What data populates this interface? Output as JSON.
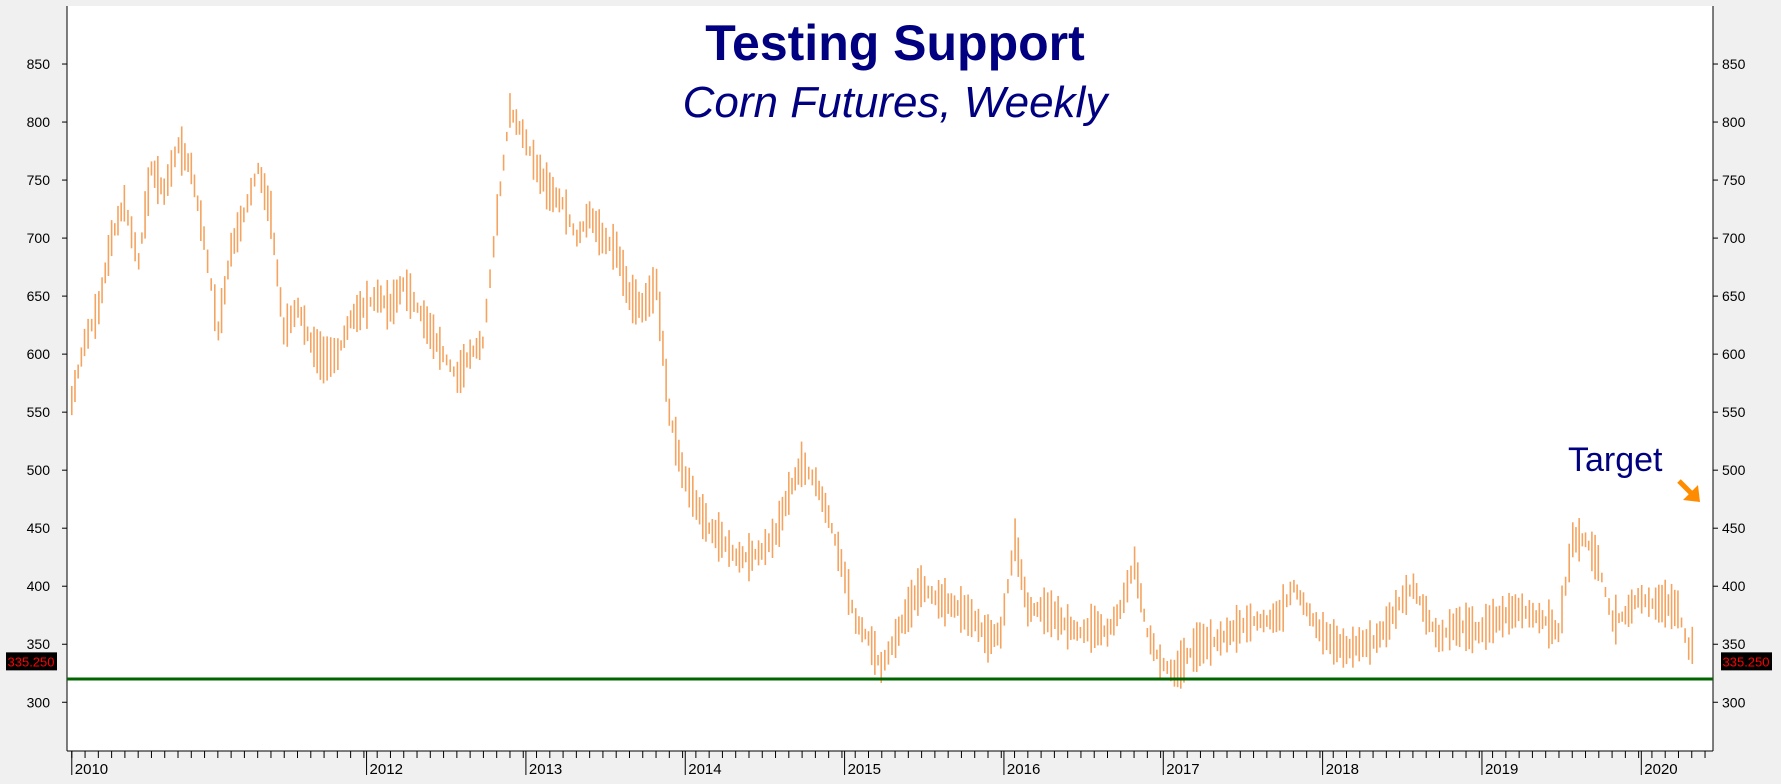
{
  "chart_data": {
    "type": "bar",
    "subtype": "ohlc-weekly-price-bars",
    "title": "Testing Support",
    "subtitle": "Corn Futures, Weekly",
    "annotation": "Target",
    "last_price_label": "335.250",
    "last_price": 335.25,
    "support_level": 320,
    "ylim": [
      258,
      900
    ],
    "y_ticks": [
      300,
      350,
      400,
      450,
      500,
      550,
      600,
      650,
      700,
      750,
      800,
      850
    ],
    "x_ticks": [
      "2010",
      "2012",
      "2013",
      "2014",
      "2015",
      "2016",
      "2017",
      "2018",
      "2019",
      "2020"
    ],
    "grid": false,
    "series": [
      {
        "values": [
          [
            2010.0,
            560
          ],
          [
            2010.08,
            610
          ],
          [
            2010.17,
            640
          ],
          [
            2010.25,
            700
          ],
          [
            2010.33,
            730
          ],
          [
            2010.42,
            680
          ],
          [
            2010.5,
            760
          ],
          [
            2010.58,
            740
          ],
          [
            2010.67,
            780
          ],
          [
            2010.75,
            760
          ],
          [
            2010.83,
            700
          ],
          [
            2010.92,
            620
          ],
          [
            2011.0,
            690
          ],
          [
            2011.08,
            720
          ],
          [
            2011.17,
            760
          ],
          [
            2011.25,
            720
          ],
          [
            2011.33,
            620
          ],
          [
            2011.42,
            640
          ],
          [
            2011.5,
            610
          ],
          [
            2011.58,
            595
          ],
          [
            2011.67,
            600
          ],
          [
            2011.75,
            630
          ],
          [
            2011.83,
            640
          ],
          [
            2011.92,
            650
          ],
          [
            2012.0,
            640
          ],
          [
            2012.08,
            660
          ],
          [
            2012.17,
            640
          ],
          [
            2012.25,
            620
          ],
          [
            2012.33,
            600
          ],
          [
            2012.42,
            580
          ],
          [
            2012.5,
            600
          ],
          [
            2012.58,
            610
          ],
          [
            2012.67,
            720
          ],
          [
            2012.75,
            810
          ],
          [
            2012.83,
            790
          ],
          [
            2012.92,
            760
          ],
          [
            2013.0,
            740
          ],
          [
            2013.08,
            730
          ],
          [
            2013.17,
            700
          ],
          [
            2013.25,
            720
          ],
          [
            2013.33,
            700
          ],
          [
            2013.42,
            690
          ],
          [
            2013.5,
            650
          ],
          [
            2013.58,
            640
          ],
          [
            2013.67,
            660
          ],
          [
            2013.75,
            550
          ],
          [
            2013.83,
            500
          ],
          [
            2013.92,
            470
          ],
          [
            2014.0,
            450
          ],
          [
            2014.08,
            440
          ],
          [
            2014.17,
            425
          ],
          [
            2014.25,
            425
          ],
          [
            2014.33,
            430
          ],
          [
            2014.42,
            445
          ],
          [
            2014.5,
            480
          ],
          [
            2014.58,
            505
          ],
          [
            2014.67,
            490
          ],
          [
            2014.75,
            460
          ],
          [
            2014.83,
            420
          ],
          [
            2014.92,
            370
          ],
          [
            2015.0,
            355
          ],
          [
            2015.08,
            330
          ],
          [
            2015.17,
            355
          ],
          [
            2015.25,
            380
          ],
          [
            2015.33,
            400
          ],
          [
            2015.42,
            390
          ],
          [
            2015.5,
            385
          ],
          [
            2015.58,
            380
          ],
          [
            2015.67,
            370
          ],
          [
            2015.75,
            355
          ],
          [
            2015.83,
            360
          ],
          [
            2015.92,
            440
          ],
          [
            2016.0,
            380
          ],
          [
            2016.08,
            380
          ],
          [
            2016.17,
            375
          ],
          [
            2016.25,
            365
          ],
          [
            2016.33,
            360
          ],
          [
            2016.42,
            365
          ],
          [
            2016.5,
            360
          ],
          [
            2016.58,
            380
          ],
          [
            2016.67,
            420
          ],
          [
            2016.75,
            360
          ],
          [
            2016.83,
            335
          ],
          [
            2016.92,
            325
          ],
          [
            2017.0,
            340
          ],
          [
            2017.08,
            350
          ],
          [
            2017.17,
            352
          ],
          [
            2017.25,
            358
          ],
          [
            2017.33,
            365
          ],
          [
            2017.42,
            370
          ],
          [
            2017.5,
            370
          ],
          [
            2017.58,
            375
          ],
          [
            2017.67,
            400
          ],
          [
            2017.75,
            380
          ],
          [
            2017.83,
            362
          ],
          [
            2017.92,
            352
          ],
          [
            2018.0,
            345
          ],
          [
            2018.08,
            350
          ],
          [
            2018.17,
            352
          ],
          [
            2018.25,
            365
          ],
          [
            2018.33,
            385
          ],
          [
            2018.42,
            400
          ],
          [
            2018.5,
            375
          ],
          [
            2018.58,
            355
          ],
          [
            2018.67,
            365
          ],
          [
            2018.75,
            365
          ],
          [
            2018.83,
            360
          ],
          [
            2018.92,
            370
          ],
          [
            2019.0,
            375
          ],
          [
            2019.08,
            380
          ],
          [
            2019.17,
            375
          ],
          [
            2019.25,
            370
          ],
          [
            2019.33,
            360
          ],
          [
            2019.42,
            440
          ],
          [
            2019.5,
            440
          ],
          [
            2019.58,
            420
          ],
          [
            2019.67,
            370
          ],
          [
            2019.75,
            375
          ],
          [
            2019.83,
            390
          ],
          [
            2019.92,
            385
          ],
          [
            2020.0,
            385
          ],
          [
            2020.08,
            380
          ],
          [
            2020.17,
            335
          ]
        ]
      }
    ]
  }
}
